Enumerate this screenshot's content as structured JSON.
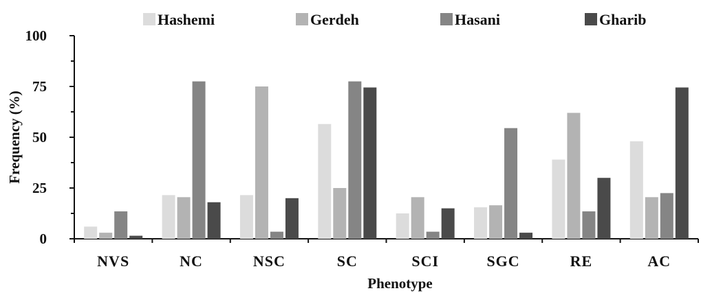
{
  "chart_data": {
    "type": "bar",
    "title": "",
    "xlabel": "Phenotype",
    "ylabel": "Frequency (%)",
    "ylim": [
      0,
      100
    ],
    "yticks": [
      "0",
      "25",
      "50",
      "75",
      "100"
    ],
    "categories": [
      "NVS",
      "NC",
      "NSC",
      "SC",
      "SCI",
      "SGC",
      "RE",
      "AC"
    ],
    "legend_position": "top",
    "grid": false,
    "series": [
      {
        "name": "Hashemi",
        "color": "#dcdcdc",
        "values": [
          6,
          21.5,
          21.5,
          56.5,
          12.5,
          15.5,
          39,
          48
        ]
      },
      {
        "name": "Gerdeh",
        "color": "#b3b3b3",
        "values": [
          3,
          20.5,
          75,
          25,
          20.5,
          16.5,
          62,
          20.5
        ]
      },
      {
        "name": "Hasani",
        "color": "#858585",
        "values": [
          13.5,
          77.5,
          3.5,
          77.5,
          3.5,
          54.5,
          13.5,
          22.5
        ]
      },
      {
        "name": "Gharib",
        "color": "#4a4a4a",
        "values": [
          1.5,
          18,
          20,
          74.5,
          15,
          3,
          30,
          74.5
        ]
      }
    ]
  }
}
